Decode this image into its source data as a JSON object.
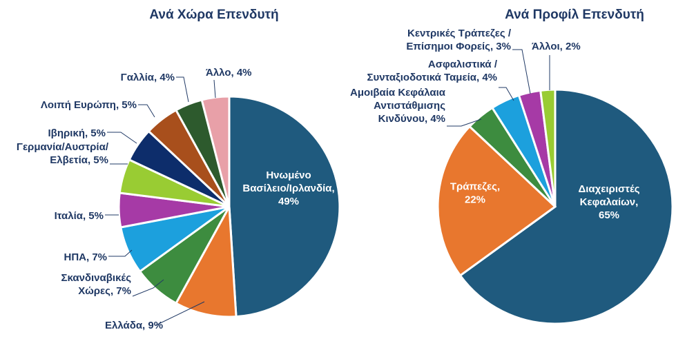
{
  "chart_data": [
    {
      "type": "pie",
      "title": "Ανά Χώρα Επενδυτή",
      "slices": [
        {
          "label": "Ηνωμένο Βασίλειο/Ιρλανδία",
          "value": 49,
          "value_label": "49%",
          "color": "#1f5a7e"
        },
        {
          "label": "Ελλάδα",
          "value": 9,
          "value_label": "9%",
          "color": "#e8772e"
        },
        {
          "label": "Σκανδιναβικές Χώρες",
          "value": 7,
          "value_label": "7%",
          "color": "#3d8c3f"
        },
        {
          "label": "ΗΠΑ",
          "value": 7,
          "value_label": "7%",
          "color": "#1ca0dd"
        },
        {
          "label": "Ιταλία",
          "value": 5,
          "value_label": "5%",
          "color": "#a63aa6"
        },
        {
          "label": "Γερμανία/Αυστρία/ Ελβετία",
          "value": 5,
          "value_label": "5%",
          "color": "#99cc33"
        },
        {
          "label": "Ιβηρική",
          "value": 5,
          "value_label": "5%",
          "color": "#0d2d6b"
        },
        {
          "label": "Λοιπή Ευρώπη",
          "value": 5,
          "value_label": "5%",
          "color": "#a84f1c"
        },
        {
          "label": "Γαλλία",
          "value": 4,
          "value_label": "4%",
          "color": "#2d5a2d"
        },
        {
          "label": "Άλλο",
          "value": 4,
          "value_label": "4%",
          "color": "#e8a0a8"
        }
      ]
    },
    {
      "type": "pie",
      "title": "Ανά Προφίλ Επενδυτή",
      "slices": [
        {
          "label": "Διαχειριστές Κεφαλαίων",
          "value": 65,
          "value_label": "65%",
          "color": "#1f5a7e"
        },
        {
          "label": "Τράπεζες",
          "value": 22,
          "value_label": "22%",
          "color": "#e8772e"
        },
        {
          "label": "Αμοιβαία Κεφάλαια Αντιστάθμισης Κινδύνου",
          "value": 4,
          "value_label": "4%",
          "color": "#3d8c3f"
        },
        {
          "label": "Ασφαλιστικά / Συνταξιοδοτικά Ταμεία",
          "value": 4,
          "value_label": "4%",
          "color": "#1ca0dd"
        },
        {
          "label": "Κεντρικές Τράπεζες / Επίσημοι Φορείς",
          "value": 3,
          "value_label": "3%",
          "color": "#a63aa6"
        },
        {
          "label": "Άλλοι",
          "value": 2,
          "value_label": "2%",
          "color": "#99cc33"
        }
      ]
    }
  ],
  "labels": {
    "country": [
      [
        "Ηνωμένο",
        "Βασίλειο/Ιρλανδία,",
        "49%"
      ],
      [
        "Ελλάδα, 9%"
      ],
      [
        "Σκανδιναβικές",
        "Χώρες, 7%"
      ],
      [
        "ΗΠΑ, 7%"
      ],
      [
        "Ιταλία, 5%"
      ],
      [
        "Γερμανία/Αυστρία/",
        "Ελβετία, 5%"
      ],
      [
        "Ιβηρική, 5%"
      ],
      [
        "Λοιπή Ευρώπη, 5%"
      ],
      [
        "Γαλλία, 4%"
      ],
      [
        "Άλλο, 4%"
      ]
    ],
    "profile": [
      [
        "Διαχειριστές",
        "Κεφαλαίων,",
        "65%"
      ],
      [
        "Τράπεζες,",
        "22%"
      ],
      [
        "Αμοιβαία Κεφάλαια",
        "Αντιστάθμισης",
        "Κινδύνου, 4%"
      ],
      [
        "Ασφαλιστικά /",
        "Συνταξιοδοτικά Ταμεία, 4%"
      ],
      [
        "Κεντρικές Τράπεζες /",
        "Επίσημοι Φορείς, 3%"
      ],
      [
        "Άλλοι, 2%"
      ]
    ]
  }
}
